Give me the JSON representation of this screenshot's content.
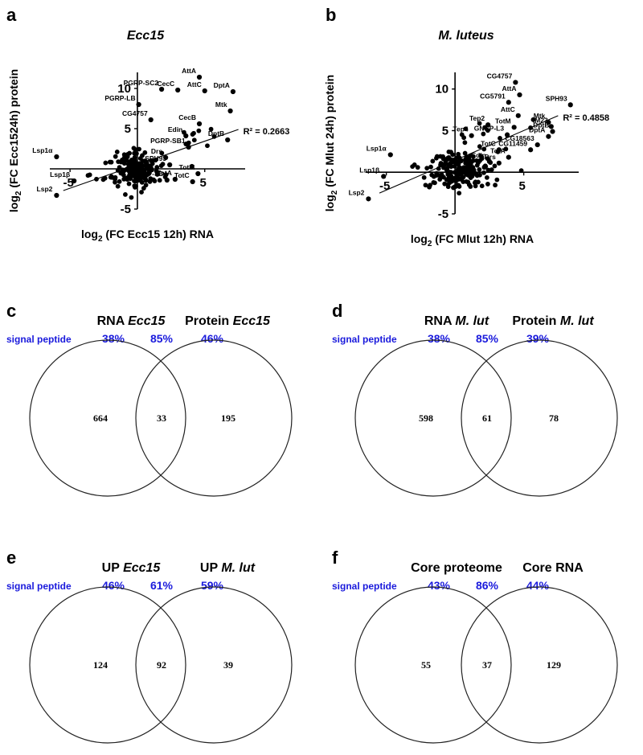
{
  "chart_data": [
    {
      "type": "scatter",
      "panel": "a",
      "title": "Ecc15",
      "xlabel": "log",
      "xlabel_sub": "2",
      "xlabel_rest": "(FC Ecc15 12h) RNA",
      "ylabel": "log",
      "ylabel_sub": "2",
      "ylabel_rest": "(FC Ecc1524h) protein",
      "xlim": [
        -6.5,
        8
      ],
      "ylim": [
        -5,
        12
      ],
      "xticks": [
        -5,
        5
      ],
      "yticks": [
        -5,
        5,
        10
      ],
      "r2": "R² = 0.2663",
      "fit": [
        [
          -5.5,
          -2.7
        ],
        [
          7.5,
          4.9
        ]
      ],
      "labeled_points": [
        {
          "label": "AttA",
          "x": 4.6,
          "y": 11.4
        },
        {
          "label": "PGRP-SC2",
          "x": 1.8,
          "y": 9.9
        },
        {
          "label": "CecC",
          "x": 3.0,
          "y": 9.8
        },
        {
          "label": "AttC",
          "x": 5.0,
          "y": 9.7
        },
        {
          "label": "DptA",
          "x": 7.1,
          "y": 9.6
        },
        {
          "label": "PGRP-LB",
          "x": 0.1,
          "y": 8.0
        },
        {
          "label": "Mtk",
          "x": 6.9,
          "y": 7.2
        },
        {
          "label": "CG4757",
          "x": 1.0,
          "y": 6.1
        },
        {
          "label": "CecB",
          "x": 4.6,
          "y": 5.6
        },
        {
          "label": "Edin",
          "x": 3.6,
          "y": 4.1
        },
        {
          "label": "DptB",
          "x": 6.7,
          "y": 3.6
        },
        {
          "label": "PGRP-SB1",
          "x": 3.8,
          "y": 2.7
        },
        {
          "label": "Drs",
          "x": 2.1,
          "y": 1.4
        },
        {
          "label": "SPH93",
          "x": 2.4,
          "y": 0.5
        },
        {
          "label": "TotM",
          "x": 4.5,
          "y": -0.6
        },
        {
          "label": "PGRP-SD",
          "x": 2.2,
          "y": -1.4
        },
        {
          "label": "TotA",
          "x": 2.8,
          "y": -1.3
        },
        {
          "label": "TotC",
          "x": 4.1,
          "y": -1.6
        },
        {
          "label": "Lsp1α",
          "x": -6.0,
          "y": 1.5
        },
        {
          "label": "Lsp1β",
          "x": -4.7,
          "y": -1.5
        },
        {
          "label": "Lsp2",
          "x": -6.0,
          "y": -3.3
        }
      ],
      "cloud": {
        "center": [
          0,
          0
        ],
        "spread": [
          0.75,
          1.15
        ],
        "count": 170
      }
    },
    {
      "type": "scatter",
      "panel": "b",
      "title": "M. luteus",
      "xlabel": "log",
      "xlabel_sub": "2",
      "xlabel_rest": "(FC Mlut 12h) RNA",
      "ylabel": "log",
      "ylabel_sub": "2",
      "ylabel_rest": "(FC Mlut 24h) protein",
      "xlim": [
        -6.5,
        9
      ],
      "ylim": [
        -5,
        12
      ],
      "xticks": [
        -5,
        5
      ],
      "yticks": [
        -5,
        5,
        10
      ],
      "r2": "R² = 0.4858",
      "fit": [
        [
          -5.5,
          -2.5
        ],
        [
          7.5,
          6.8
        ]
      ],
      "labeled_points": [
        {
          "label": "CG4757",
          "x": 4.4,
          "y": 10.8
        },
        {
          "label": "AttA",
          "x": 4.7,
          "y": 9.3
        },
        {
          "label": "CG5791",
          "x": 3.9,
          "y": 8.4
        },
        {
          "label": "SPH93",
          "x": 8.4,
          "y": 8.1
        },
        {
          "label": "AttC",
          "x": 4.6,
          "y": 6.8
        },
        {
          "label": "Tep2",
          "x": 2.4,
          "y": 5.7
        },
        {
          "label": "TotM",
          "x": 4.3,
          "y": 5.4
        },
        {
          "label": "Mtk",
          "x": 6.8,
          "y": 6.0
        },
        {
          "label": "IM23",
          "x": 7.0,
          "y": 5.5
        },
        {
          "label": "DptB",
          "x": 7.1,
          "y": 4.9
        },
        {
          "label": "Tep4",
          "x": 1.2,
          "y": 4.4
        },
        {
          "label": "GNBP-L3",
          "x": 3.8,
          "y": 4.5
        },
        {
          "label": "DptA",
          "x": 6.8,
          "y": 4.3
        },
        {
          "label": "CG18563",
          "x": 6.0,
          "y": 3.3
        },
        {
          "label": "TotC",
          "x": 3.2,
          "y": 2.7
        },
        {
          "label": "CG11459",
          "x": 5.5,
          "y": 2.7
        },
        {
          "label": "TotA",
          "x": 3.9,
          "y": 1.8
        },
        {
          "label": "Edin",
          "x": 2.5,
          "y": 1.3
        },
        {
          "label": "Drs",
          "x": 3.2,
          "y": 1.1
        },
        {
          "label": "Lsp1α",
          "x": -4.7,
          "y": 2.1
        },
        {
          "label": "Lsp1β",
          "x": -5.2,
          "y": -0.5
        },
        {
          "label": "Lsp2",
          "x": -6.3,
          "y": -3.2
        }
      ],
      "cloud": {
        "center": [
          0.3,
          0.1
        ],
        "spread": [
          1.1,
          1.1
        ],
        "count": 190
      }
    },
    {
      "type": "venn",
      "panel": "c",
      "left_label": "RNA ",
      "left_label_it": "Ecc15",
      "right_label": "Protein ",
      "right_label_it": "Ecc15",
      "signal_label": "signal peptide",
      "pcts": [
        "38%",
        "85%",
        "46%"
      ],
      "counts": [
        664,
        33,
        195
      ]
    },
    {
      "type": "venn",
      "panel": "d",
      "left_label": "RNA ",
      "left_label_it": "M. lut",
      "right_label": "Protein ",
      "right_label_it": "M. lut",
      "signal_label": "signal peptide",
      "pcts": [
        "38%",
        "85%",
        "39%"
      ],
      "counts": [
        598,
        61,
        78
      ]
    },
    {
      "type": "venn",
      "panel": "e",
      "left_label": "UP ",
      "left_label_it": "Ecc15",
      "right_label": "UP ",
      "right_label_it": "M. lut",
      "signal_label": "signal peptide",
      "pcts": [
        "46%",
        "61%",
        "59%"
      ],
      "counts": [
        124,
        92,
        39
      ]
    },
    {
      "type": "venn",
      "panel": "f",
      "left_label": "Core proteome",
      "left_label_it": "",
      "right_label": "Core RNA",
      "right_label_it": "",
      "signal_label": "signal peptide",
      "pcts": [
        "43%",
        "86%",
        "44%"
      ],
      "counts": [
        55,
        37,
        129
      ]
    }
  ]
}
